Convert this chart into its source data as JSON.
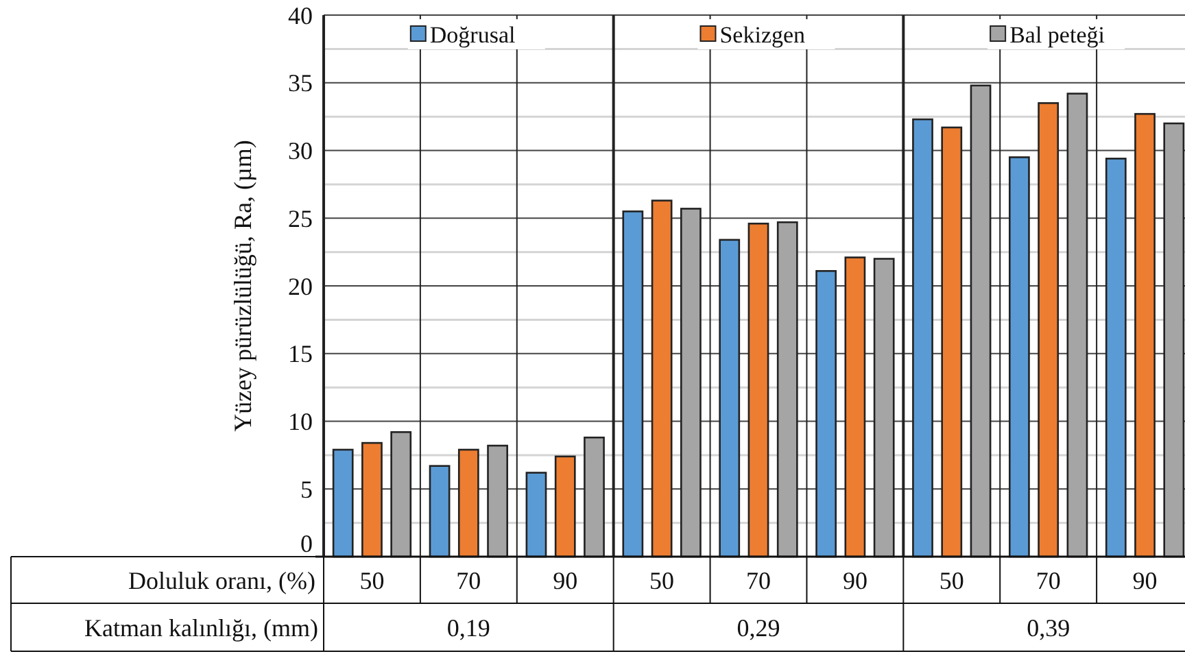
{
  "chart_data": {
    "type": "bar",
    "ylabel": "Yüzey pürüzlülüğü, Ra, (µm)",
    "xlabel": "Doluluk oranı, (%)",
    "categories": [
      "50",
      "70",
      "90",
      "50",
      "70",
      "90",
      "50",
      "70",
      "90"
    ],
    "series": [
      {
        "name": "Doğrusal",
        "color": "#5b9bd5",
        "values": [
          7.9,
          6.7,
          6.2,
          25.5,
          23.4,
          21.1,
          32.3,
          29.5,
          29.4
        ]
      },
      {
        "name": "Sekizgen",
        "color": "#ed7d31",
        "values": [
          8.4,
          7.9,
          7.4,
          26.3,
          24.6,
          22.1,
          31.7,
          33.5,
          32.7
        ]
      },
      {
        "name": "Bal peteği",
        "color": "#a5a5a5",
        "values": [
          9.2,
          8.2,
          8.8,
          25.7,
          24.7,
          22.0,
          34.8,
          34.2,
          32.0
        ]
      }
    ],
    "ylim": [
      0,
      40
    ],
    "yticks": [
      0,
      {
        "value": 2.5,
        "label": null
      },
      5,
      {
        "value": 7.5,
        "label": null
      },
      10,
      {
        "value": 12.5,
        "label": null
      },
      15,
      {
        "value": 17.5,
        "label": null
      },
      20,
      {
        "value": 22.5,
        "label": null
      },
      25,
      {
        "value": 27.5,
        "label": null
      },
      30,
      {
        "value": 32.5,
        "label": null
      },
      35,
      {
        "value": 37.5,
        "label": null
      },
      40
    ],
    "grid": true,
    "legend": "top",
    "annotations": [
      "Katman kalınlığı, (mm)",
      "0,19",
      "0,29",
      "0,39"
    ]
  }
}
